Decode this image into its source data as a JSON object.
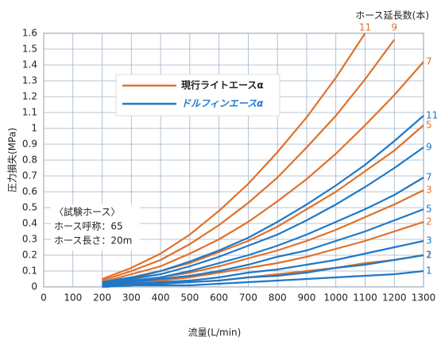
{
  "chart_data": {
    "type": "line",
    "x_label": "流量(L/min)",
    "y_label": "圧力損失(MPa)",
    "series_label_title": "ホース延長数(本)",
    "legend": [
      {
        "label": "現行ライトエースα",
        "color": "#e0702a"
      },
      {
        "label": "ドルフィンエースα",
        "color": "#1f78c8"
      }
    ],
    "annotation": [
      "〈試験ホース〉",
      "ホース呼称：65",
      "ホース長さ：20m"
    ],
    "x": [
      200,
      300,
      400,
      500,
      600,
      700,
      800,
      900,
      1000,
      1100,
      1200,
      1300
    ],
    "series": [
      {
        "name": "11",
        "color": "#e0702a",
        "values": [
          0.05,
          0.12,
          0.21,
          0.33,
          0.48,
          0.65,
          0.85,
          1.07,
          1.32,
          1.6,
          null,
          null
        ]
      },
      {
        "name": "9",
        "color": "#e0702a",
        "values": [
          0.04,
          0.1,
          0.17,
          0.27,
          0.39,
          0.53,
          0.69,
          0.88,
          1.08,
          1.31,
          1.56,
          null
        ]
      },
      {
        "name": "7",
        "color": "#e0702a",
        "values": [
          0.03,
          0.08,
          0.13,
          0.21,
          0.3,
          0.41,
          0.54,
          0.68,
          0.84,
          1.02,
          1.21,
          1.42
        ]
      },
      {
        "name": "5",
        "color": "#e0702a",
        "values": [
          0.02,
          0.05,
          0.1,
          0.15,
          0.22,
          0.29,
          0.38,
          0.49,
          0.6,
          0.73,
          0.86,
          1.02
        ]
      },
      {
        "name": "3",
        "color": "#e0702a",
        "values": [
          0.01,
          0.03,
          0.06,
          0.09,
          0.13,
          0.18,
          0.23,
          0.29,
          0.36,
          0.44,
          0.52,
          0.61
        ]
      },
      {
        "name": "2",
        "color": "#e0702a",
        "values": [
          0.01,
          0.02,
          0.04,
          0.06,
          0.09,
          0.12,
          0.15,
          0.19,
          0.24,
          0.29,
          0.35,
          0.41
        ]
      },
      {
        "name": "1",
        "color": "#e0702a",
        "values": [
          0,
          0.01,
          0.02,
          0.03,
          0.04,
          0.06,
          0.08,
          0.1,
          0.12,
          0.15,
          0.17,
          0.2
        ]
      },
      {
        "name": "11",
        "color": "#1f78c8",
        "values": [
          0.03,
          0.06,
          0.1,
          0.16,
          0.23,
          0.31,
          0.41,
          0.52,
          0.64,
          0.77,
          0.92,
          1.08
        ]
      },
      {
        "name": "9",
        "color": "#1f78c8",
        "values": [
          0.02,
          0.05,
          0.08,
          0.13,
          0.19,
          0.26,
          0.33,
          0.42,
          0.52,
          0.63,
          0.75,
          0.88
        ]
      },
      {
        "name": "7",
        "color": "#1f78c8",
        "values": [
          0.02,
          0.04,
          0.06,
          0.1,
          0.15,
          0.2,
          0.26,
          0.33,
          0.41,
          0.49,
          0.58,
          0.69
        ]
      },
      {
        "name": "5",
        "color": "#1f78c8",
        "values": [
          0.01,
          0.03,
          0.05,
          0.07,
          0.1,
          0.14,
          0.19,
          0.23,
          0.29,
          0.35,
          0.42,
          0.49
        ]
      },
      {
        "name": "3",
        "color": "#1f78c8",
        "values": [
          0.01,
          0.02,
          0.03,
          0.04,
          0.06,
          0.09,
          0.11,
          0.14,
          0.17,
          0.21,
          0.25,
          0.29
        ]
      },
      {
        "name": "2",
        "color": "#1f78c8",
        "values": [
          0,
          0.01,
          0.02,
          0.03,
          0.04,
          0.06,
          0.07,
          0.09,
          0.12,
          0.14,
          0.17,
          0.2
        ]
      },
      {
        "name": "1",
        "color": "#1f78c8",
        "values": [
          0,
          0.01,
          0.01,
          0.01,
          0.02,
          0.03,
          0.04,
          0.05,
          0.06,
          0.07,
          0.08,
          0.1
        ]
      }
    ],
    "xlim": [
      0,
      1300
    ],
    "xticks": [
      0,
      100,
      200,
      300,
      400,
      500,
      600,
      700,
      800,
      900,
      1000,
      1100,
      1200,
      1300
    ],
    "ylim": [
      0,
      1.6
    ],
    "yticks": [
      0,
      0.1,
      0.2,
      0.3,
      0.4,
      0.5,
      0.6,
      0.7,
      0.8,
      0.9,
      1,
      1.1,
      1.2,
      1.3,
      1.4,
      1.5,
      1.6
    ],
    "grid": true
  }
}
